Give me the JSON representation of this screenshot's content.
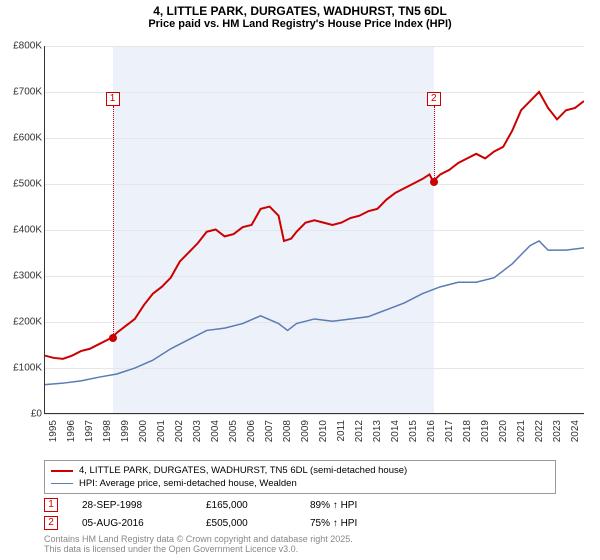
{
  "title_line1": "4, LITTLE PARK, DURGATES, WADHURST, TN5 6DL",
  "title_line2": "Price paid vs. HM Land Registry's House Price Index (HPI)",
  "chart": {
    "type": "line",
    "background_color": "#ffffff",
    "plot_bg": "#ffffff",
    "shaded_bg": "#e8eef7",
    "grid_color": "#e6e6e6",
    "axis_color": "#333333",
    "x_min": 1995,
    "x_max": 2025,
    "y_min": 0,
    "y_max": 800,
    "y_unit": "K",
    "y_prefix": "£",
    "y_ticks": [
      0,
      100,
      200,
      300,
      400,
      500,
      600,
      700,
      800
    ],
    "x_ticks": [
      1995,
      1996,
      1997,
      1998,
      1999,
      2000,
      2001,
      2002,
      2003,
      2004,
      2005,
      2006,
      2007,
      2008,
      2009,
      2010,
      2011,
      2012,
      2013,
      2014,
      2015,
      2016,
      2017,
      2018,
      2019,
      2020,
      2021,
      2022,
      2023,
      2024
    ],
    "shaded_ranges": [
      [
        1998.75,
        2016.6
      ]
    ],
    "series": [
      {
        "name": "4, LITTLE PARK, DURGATES, WADHURST, TN5 6DL (semi-detached house)",
        "color": "#cc0000",
        "line_width": 2,
        "data": [
          [
            1995,
            125
          ],
          [
            1995.5,
            120
          ],
          [
            1996,
            118
          ],
          [
            1996.5,
            125
          ],
          [
            1997,
            135
          ],
          [
            1997.5,
            140
          ],
          [
            1998,
            150
          ],
          [
            1998.5,
            160
          ],
          [
            1998.75,
            165
          ],
          [
            1999,
            175
          ],
          [
            1999.5,
            190
          ],
          [
            2000,
            205
          ],
          [
            2000.5,
            235
          ],
          [
            2001,
            260
          ],
          [
            2001.5,
            275
          ],
          [
            2002,
            295
          ],
          [
            2002.5,
            330
          ],
          [
            2003,
            350
          ],
          [
            2003.5,
            370
          ],
          [
            2004,
            395
          ],
          [
            2004.5,
            400
          ],
          [
            2005,
            385
          ],
          [
            2005.5,
            390
          ],
          [
            2006,
            405
          ],
          [
            2006.5,
            410
          ],
          [
            2007,
            445
          ],
          [
            2007.5,
            450
          ],
          [
            2008,
            430
          ],
          [
            2008.3,
            375
          ],
          [
            2008.7,
            380
          ],
          [
            2009,
            395
          ],
          [
            2009.5,
            415
          ],
          [
            2010,
            420
          ],
          [
            2010.5,
            415
          ],
          [
            2011,
            410
          ],
          [
            2011.5,
            415
          ],
          [
            2012,
            425
          ],
          [
            2012.5,
            430
          ],
          [
            2013,
            440
          ],
          [
            2013.5,
            445
          ],
          [
            2014,
            465
          ],
          [
            2014.5,
            480
          ],
          [
            2015,
            490
          ],
          [
            2015.5,
            500
          ],
          [
            2016,
            510
          ],
          [
            2016.4,
            520
          ],
          [
            2016.6,
            505
          ],
          [
            2017,
            520
          ],
          [
            2017.5,
            530
          ],
          [
            2018,
            545
          ],
          [
            2018.5,
            555
          ],
          [
            2019,
            565
          ],
          [
            2019.5,
            555
          ],
          [
            2020,
            570
          ],
          [
            2020.5,
            580
          ],
          [
            2021,
            615
          ],
          [
            2021.5,
            660
          ],
          [
            2022,
            680
          ],
          [
            2022.5,
            700
          ],
          [
            2023,
            665
          ],
          [
            2023.5,
            640
          ],
          [
            2024,
            660
          ],
          [
            2024.5,
            665
          ],
          [
            2025,
            680
          ]
        ]
      },
      {
        "name": "HPI: Average price, semi-detached house, Wealden",
        "color": "#5b7bb4",
        "line_width": 1.5,
        "data": [
          [
            1995,
            62
          ],
          [
            1996,
            65
          ],
          [
            1997,
            70
          ],
          [
            1998,
            78
          ],
          [
            1999,
            85
          ],
          [
            2000,
            98
          ],
          [
            2001,
            115
          ],
          [
            2002,
            140
          ],
          [
            2003,
            160
          ],
          [
            2004,
            180
          ],
          [
            2005,
            185
          ],
          [
            2006,
            195
          ],
          [
            2007,
            212
          ],
          [
            2008,
            195
          ],
          [
            2008.5,
            180
          ],
          [
            2009,
            195
          ],
          [
            2010,
            205
          ],
          [
            2011,
            200
          ],
          [
            2012,
            205
          ],
          [
            2013,
            210
          ],
          [
            2014,
            225
          ],
          [
            2015,
            240
          ],
          [
            2016,
            260
          ],
          [
            2017,
            275
          ],
          [
            2018,
            285
          ],
          [
            2019,
            285
          ],
          [
            2020,
            295
          ],
          [
            2021,
            325
          ],
          [
            2022,
            365
          ],
          [
            2022.5,
            375
          ],
          [
            2023,
            355
          ],
          [
            2024,
            355
          ],
          [
            2025,
            360
          ]
        ]
      }
    ],
    "markers": [
      {
        "id": "1",
        "x": 1998.75,
        "y": 165,
        "box_y": 700
      },
      {
        "id": "2",
        "x": 2016.6,
        "y": 505,
        "box_y": 700
      }
    ]
  },
  "legend": {
    "items": [
      {
        "swatch": "#cc0000",
        "weight": 2,
        "label": "4, LITTLE PARK, DURGATES, WADHURST, TN5 6DL (semi-detached house)"
      },
      {
        "swatch": "#5b7bb4",
        "weight": 1.5,
        "label": "HPI: Average price, semi-detached house, Wealden"
      }
    ]
  },
  "sales": [
    {
      "marker": "1",
      "date": "28-SEP-1998",
      "price": "£165,000",
      "delta": "89% ↑ HPI"
    },
    {
      "marker": "2",
      "date": "05-AUG-2016",
      "price": "£505,000",
      "delta": "75% ↑ HPI"
    }
  ],
  "footer_line1": "Contains HM Land Registry data © Crown copyright and database right 2025.",
  "footer_line2": "This data is licensed under the Open Government Licence v3.0."
}
